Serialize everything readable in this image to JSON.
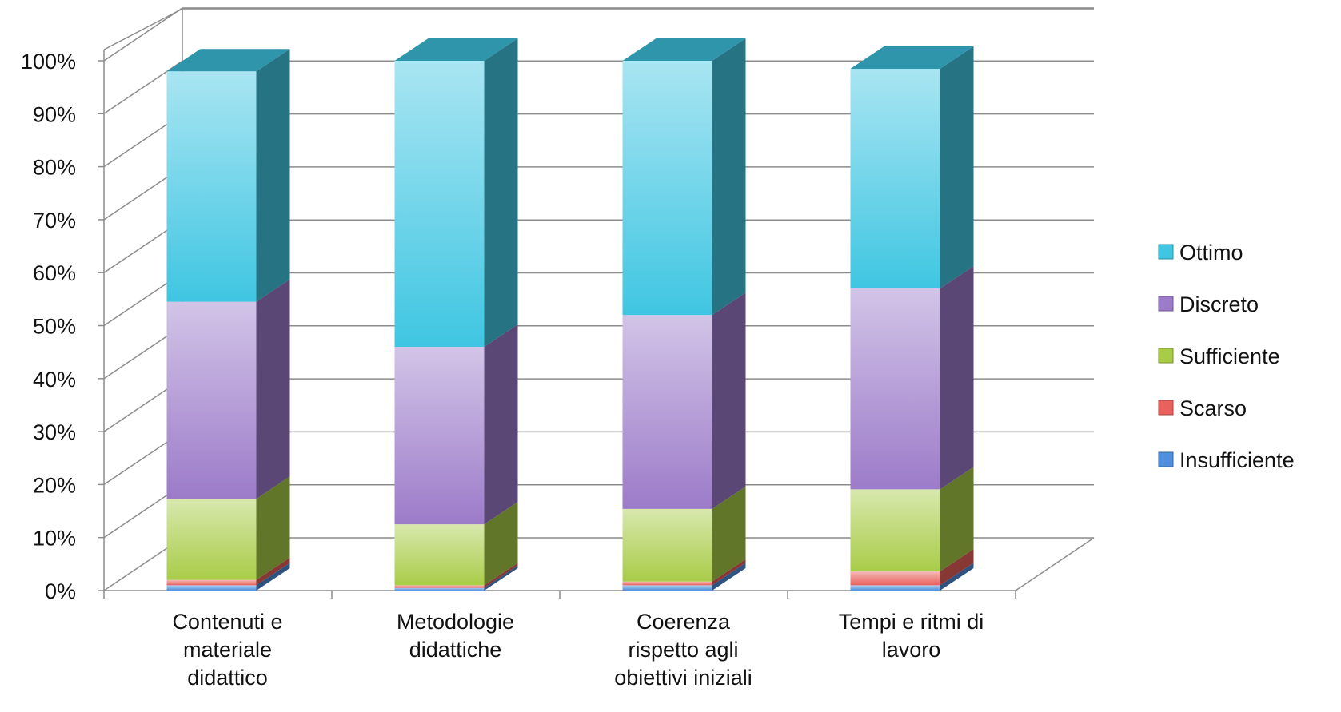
{
  "chart_data": {
    "type": "bar",
    "stacked": true,
    "percent_stacked": true,
    "three_d": true,
    "categories": [
      [
        "Contenuti e",
        "materiale",
        "didattico"
      ],
      [
        "Metodologie",
        "didattiche"
      ],
      [
        "Coerenza",
        "rispetto agli",
        "obiettivi iniziali"
      ],
      [
        "Tempi e ritmi di",
        "lavoro"
      ]
    ],
    "series": [
      {
        "name": "Insufficiente",
        "values": [
          1,
          0.5,
          1,
          1
        ],
        "color": "#4f8fde"
      },
      {
        "name": "Scarso",
        "values": [
          1,
          0.5,
          0.7,
          2.6
        ],
        "color": "#e8615c"
      },
      {
        "name": "Sufficiente",
        "values": [
          15.3,
          11.5,
          13.7,
          15.5
        ],
        "color": "#a9cc48"
      },
      {
        "name": "Discreto",
        "values": [
          37.2,
          33.5,
          36.6,
          37.9
        ],
        "color": "#9c7bc9"
      },
      {
        "name": "Ottimo",
        "values": [
          43.5,
          54,
          48,
          41.5
        ],
        "color": "#3fc6e2"
      }
    ],
    "y_ticks": [
      "0%",
      "10%",
      "20%",
      "30%",
      "40%",
      "50%",
      "60%",
      "70%",
      "80%",
      "90%",
      "100%"
    ],
    "ylim": [
      0,
      100
    ],
    "grid": true,
    "legend": {
      "placement": "right",
      "order": [
        "Ottimo",
        "Discreto",
        "Sufficiente",
        "Scarso",
        "Insufficiente"
      ]
    }
  }
}
